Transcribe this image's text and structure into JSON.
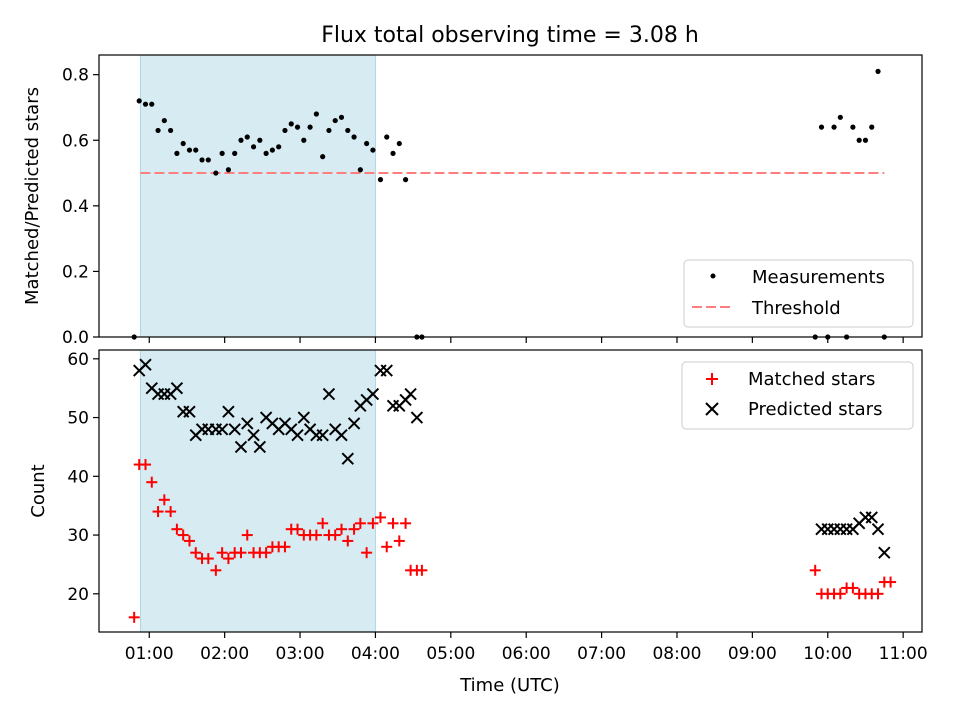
{
  "title": "Flux total observing time = 3.08 h",
  "chart_data": [
    {
      "type": "scatter",
      "panel": "top",
      "title": "Flux total observing time = 3.08 h",
      "xlabel": "",
      "ylabel": "Matched/Predicted stars",
      "xlim": [
        "00:20",
        "11:15"
      ],
      "ylim": [
        0,
        0.86
      ],
      "yticks": [
        0.0,
        0.2,
        0.4,
        0.6,
        0.8
      ],
      "ytick_labels": [
        "0.0",
        "0.2",
        "0.4",
        "0.6",
        "0.8"
      ],
      "shaded_span": [
        "00:53",
        "04:00"
      ],
      "legend_position": "lower right",
      "legend": {
        "measurements": "Measurements",
        "threshold": "Threshold"
      },
      "colors": {
        "measurements": "#000000",
        "threshold": "#ff7f7f",
        "span": "#add8e6"
      },
      "threshold": {
        "value": 0.5,
        "x_range": [
          "00:53",
          "10:45"
        ]
      },
      "series": [
        {
          "kind": "measurements",
          "points": [
            [
              "00:48",
              0.0
            ],
            [
              "00:52",
              0.72
            ],
            [
              "00:57",
              0.71
            ],
            [
              "01:02",
              0.71
            ],
            [
              "01:07",
              0.63
            ],
            [
              "01:12",
              0.66
            ],
            [
              "01:17",
              0.63
            ],
            [
              "01:22",
              0.56
            ],
            [
              "01:27",
              0.59
            ],
            [
              "01:32",
              0.57
            ],
            [
              "01:37",
              0.57
            ],
            [
              "01:42",
              0.54
            ],
            [
              "01:47",
              0.54
            ],
            [
              "01:53",
              0.5
            ],
            [
              "01:58",
              0.56
            ],
            [
              "02:03",
              0.51
            ],
            [
              "02:08",
              0.56
            ],
            [
              "02:13",
              0.6
            ],
            [
              "02:18",
              0.61
            ],
            [
              "02:23",
              0.58
            ],
            [
              "02:28",
              0.6
            ],
            [
              "02:33",
              0.56
            ],
            [
              "02:38",
              0.57
            ],
            [
              "02:43",
              0.58
            ],
            [
              "02:48",
              0.63
            ],
            [
              "02:53",
              0.65
            ],
            [
              "02:58",
              0.64
            ],
            [
              "03:03",
              0.6
            ],
            [
              "03:08",
              0.64
            ],
            [
              "03:13",
              0.68
            ],
            [
              "03:18",
              0.55
            ],
            [
              "03:23",
              0.63
            ],
            [
              "03:28",
              0.66
            ],
            [
              "03:33",
              0.67
            ],
            [
              "03:38",
              0.63
            ],
            [
              "03:43",
              0.61
            ],
            [
              "03:48",
              0.51
            ],
            [
              "03:53",
              0.59
            ],
            [
              "03:58",
              0.57
            ],
            [
              "04:04",
              0.48
            ],
            [
              "04:09",
              0.61
            ],
            [
              "04:14",
              0.56
            ],
            [
              "04:19",
              0.59
            ],
            [
              "04:24",
              0.48
            ],
            [
              "04:33",
              0.0
            ],
            [
              "04:37",
              0.0
            ],
            [
              "09:50",
              0.0
            ],
            [
              "09:55",
              0.64
            ],
            [
              "10:00",
              0.0
            ],
            [
              "10:05",
              0.64
            ],
            [
              "10:10",
              0.67
            ],
            [
              "10:15",
              0.0
            ],
            [
              "10:20",
              0.64
            ],
            [
              "10:25",
              0.6
            ],
            [
              "10:30",
              0.6
            ],
            [
              "10:35",
              0.64
            ],
            [
              "10:40",
              0.81
            ],
            [
              "10:45",
              0.0
            ]
          ]
        }
      ]
    },
    {
      "type": "scatter",
      "panel": "bottom",
      "xlabel": "Time (UTC)",
      "ylabel": "Count",
      "xlim": [
        "00:20",
        "11:15"
      ],
      "ylim": [
        13.5,
        61.5
      ],
      "yticks": [
        20,
        30,
        40,
        50,
        60
      ],
      "xticks": [
        "01:00",
        "02:00",
        "03:00",
        "04:00",
        "05:00",
        "06:00",
        "07:00",
        "08:00",
        "09:00",
        "10:00",
        "11:00"
      ],
      "shaded_span": [
        "00:53",
        "04:00"
      ],
      "legend_position": "upper right",
      "colors": {
        "matched": "#ff0000",
        "predicted": "#000000"
      },
      "series": [
        {
          "name": "Matched stars",
          "marker": "plus",
          "points": [
            [
              "00:48",
              16
            ],
            [
              "00:52",
              42
            ],
            [
              "00:57",
              42
            ],
            [
              "01:02",
              39
            ],
            [
              "01:07",
              34
            ],
            [
              "01:12",
              36
            ],
            [
              "01:17",
              34
            ],
            [
              "01:22",
              31
            ],
            [
              "01:27",
              30
            ],
            [
              "01:32",
              29
            ],
            [
              "01:37",
              27
            ],
            [
              "01:42",
              26
            ],
            [
              "01:47",
              26
            ],
            [
              "01:53",
              24
            ],
            [
              "01:58",
              27
            ],
            [
              "02:03",
              26
            ],
            [
              "02:08",
              27
            ],
            [
              "02:13",
              27
            ],
            [
              "02:18",
              30
            ],
            [
              "02:23",
              27
            ],
            [
              "02:28",
              27
            ],
            [
              "02:33",
              27
            ],
            [
              "02:38",
              28
            ],
            [
              "02:43",
              28
            ],
            [
              "02:48",
              28
            ],
            [
              "02:53",
              31
            ],
            [
              "02:58",
              31
            ],
            [
              "03:03",
              30
            ],
            [
              "03:08",
              30
            ],
            [
              "03:13",
              30
            ],
            [
              "03:18",
              32
            ],
            [
              "03:23",
              30
            ],
            [
              "03:28",
              30
            ],
            [
              "03:33",
              31
            ],
            [
              "03:38",
              29
            ],
            [
              "03:43",
              31
            ],
            [
              "03:48",
              32
            ],
            [
              "03:53",
              27
            ],
            [
              "03:58",
              32
            ],
            [
              "04:04",
              33
            ],
            [
              "04:09",
              28
            ],
            [
              "04:14",
              32
            ],
            [
              "04:19",
              29
            ],
            [
              "04:24",
              32
            ],
            [
              "04:28",
              24
            ],
            [
              "04:33",
              24
            ],
            [
              "04:37",
              24
            ],
            [
              "09:50",
              24
            ],
            [
              "09:55",
              20
            ],
            [
              "10:00",
              20
            ],
            [
              "10:05",
              20
            ],
            [
              "10:10",
              20
            ],
            [
              "10:15",
              21
            ],
            [
              "10:20",
              21
            ],
            [
              "10:25",
              20
            ],
            [
              "10:30",
              20
            ],
            [
              "10:35",
              20
            ],
            [
              "10:40",
              20
            ],
            [
              "10:45",
              22
            ],
            [
              "10:50",
              22
            ]
          ]
        },
        {
          "name": "Predicted stars",
          "marker": "x",
          "points": [
            [
              "00:52",
              58
            ],
            [
              "00:57",
              59
            ],
            [
              "01:02",
              55
            ],
            [
              "01:07",
              54
            ],
            [
              "01:12",
              54
            ],
            [
              "01:17",
              54
            ],
            [
              "01:22",
              55
            ],
            [
              "01:27",
              51
            ],
            [
              "01:32",
              51
            ],
            [
              "01:37",
              47
            ],
            [
              "01:42",
              48
            ],
            [
              "01:47",
              48
            ],
            [
              "01:53",
              48
            ],
            [
              "01:58",
              48
            ],
            [
              "02:03",
              51
            ],
            [
              "02:08",
              48
            ],
            [
              "02:13",
              45
            ],
            [
              "02:18",
              49
            ],
            [
              "02:23",
              47
            ],
            [
              "02:28",
              45
            ],
            [
              "02:33",
              50
            ],
            [
              "02:38",
              49
            ],
            [
              "02:43",
              48
            ],
            [
              "02:48",
              49
            ],
            [
              "02:53",
              48
            ],
            [
              "02:58",
              47
            ],
            [
              "03:03",
              50
            ],
            [
              "03:08",
              48
            ],
            [
              "03:13",
              47
            ],
            [
              "03:18",
              47
            ],
            [
              "03:23",
              54
            ],
            [
              "03:28",
              48
            ],
            [
              "03:33",
              47
            ],
            [
              "03:38",
              43
            ],
            [
              "03:43",
              49
            ],
            [
              "03:48",
              52
            ],
            [
              "03:53",
              53
            ],
            [
              "03:58",
              54
            ],
            [
              "04:04",
              58
            ],
            [
              "04:09",
              58
            ],
            [
              "04:14",
              52
            ],
            [
              "04:19",
              52
            ],
            [
              "04:24",
              53
            ],
            [
              "04:28",
              54
            ],
            [
              "04:33",
              50
            ],
            [
              "09:55",
              31
            ],
            [
              "10:00",
              31
            ],
            [
              "10:05",
              31
            ],
            [
              "10:10",
              31
            ],
            [
              "10:15",
              31
            ],
            [
              "10:20",
              31
            ],
            [
              "10:25",
              32
            ],
            [
              "10:30",
              33
            ],
            [
              "10:35",
              33
            ],
            [
              "10:40",
              31
            ],
            [
              "10:45",
              27
            ]
          ]
        }
      ]
    }
  ]
}
